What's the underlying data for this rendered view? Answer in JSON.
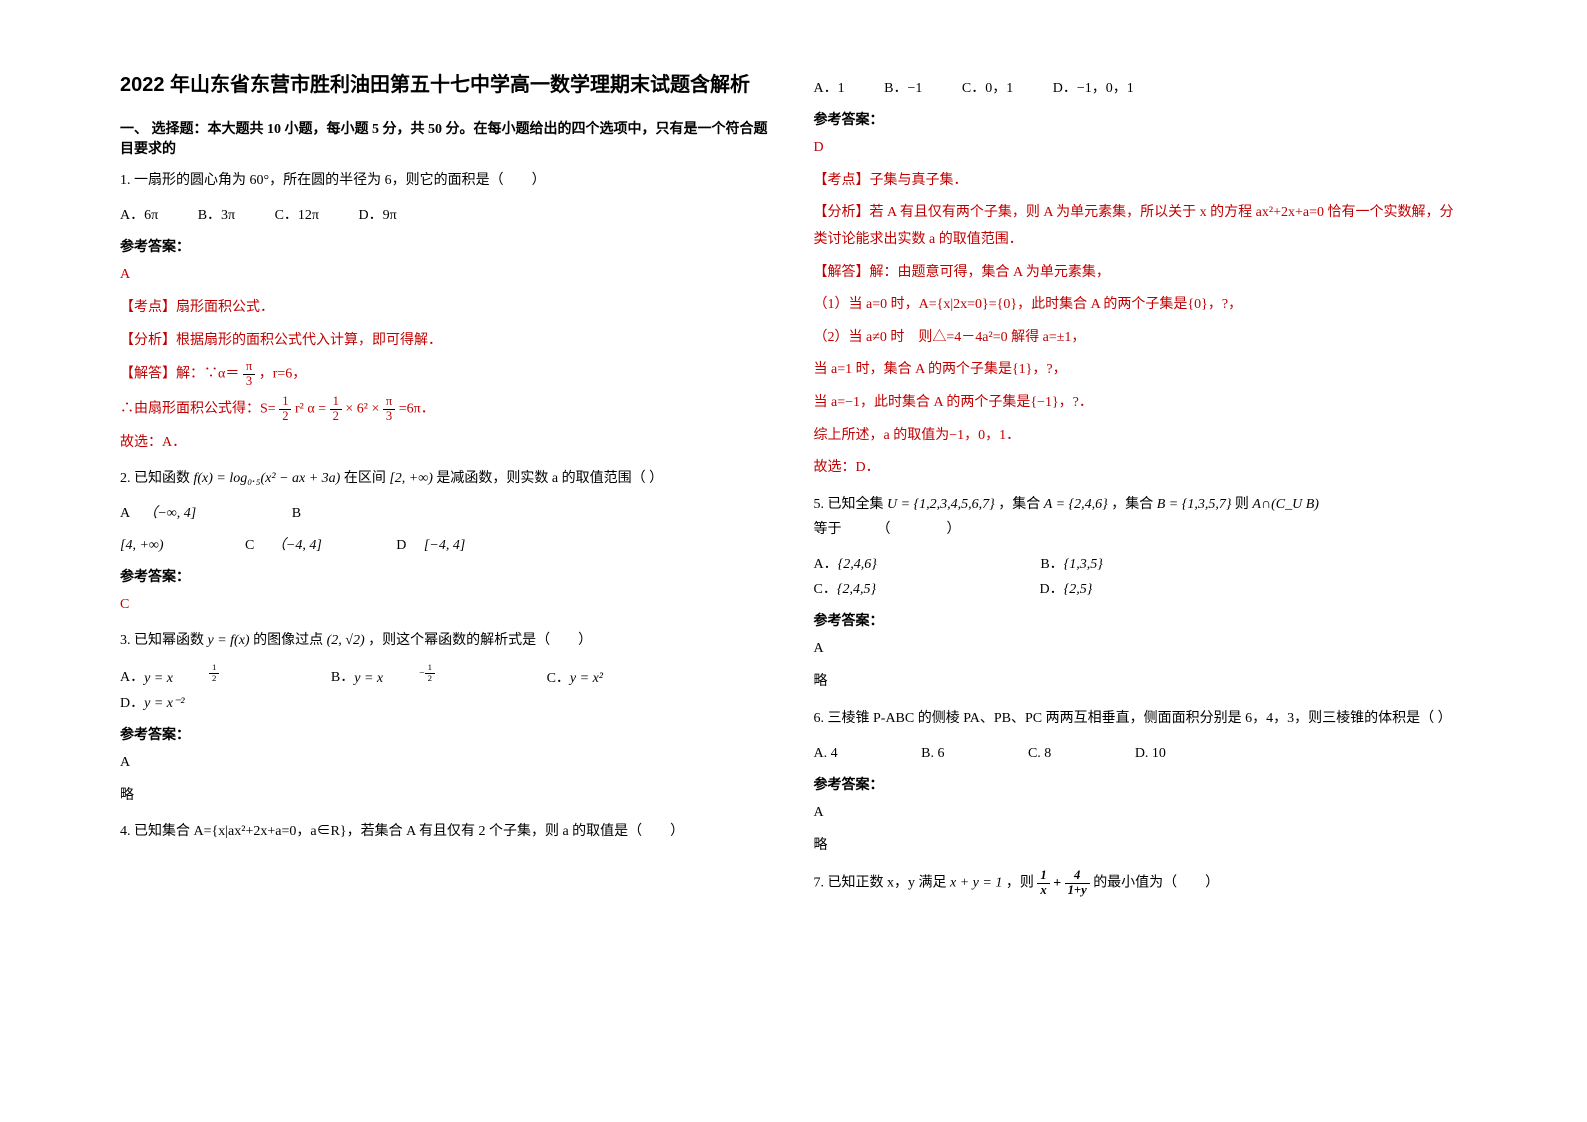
{
  "title": "2022 年山东省东营市胜利油田第五十七中学高一数学理期末试题含解析",
  "section1": "一、 选择题：本大题共 10 小题，每小题 5 分，共 50 分。在每小题给出的四个选项中，只有是一个符合题目要求的",
  "q1": {
    "text": "1. 一扇形的圆心角为 60°，所在圆的半径为 6，则它的面积是（　　）",
    "a": "A．6π",
    "b": "B．3π",
    "c": "C．12π",
    "d": "D．9π",
    "answer_label": "参考答案：",
    "answer": "A",
    "point_label": "【考点】扇形面积公式．",
    "analysis_label": "【分析】根据扇形的面积公式代入计算，即可得解．",
    "solve_label": "【解答】解：∵α＝",
    "solve_mid": "，r=6，",
    "solve2": "∴由扇形面积公式得：S=",
    "solve3": "=6π．",
    "pick": "故选：A．"
  },
  "q2": {
    "text_a": "2. 已知函数 ",
    "text_b": " 在区间 ",
    "text_c": " 是减函数，则实数 a 的取值范围（ ）",
    "fx": "f(x) = log₀.₅(x² − ax + 3a)",
    "interval": "[2, +∞)",
    "oa": "（−∞, 4]",
    "ob": "",
    "oc1": "[4, +∞)",
    "oc2": "（−4, 4]",
    "od": "[−4, 4]",
    "answer_label": "参考答案：",
    "answer": "C"
  },
  "q3": {
    "text_a": "3. 已知幂函数 ",
    "text_b": " 的图像过点 ",
    "text_c": "，则这个幂函数的解析式是（　　）",
    "yfx": "y = f(x)",
    "pt": "(2, √2)",
    "oa": "y = x",
    "ob": "y = x",
    "oc": "y = x²",
    "od": "y = x⁻²",
    "answer_label": "参考答案：",
    "answer": "A",
    "skip": "略"
  },
  "q4": {
    "text": "4. 已知集合 A={x|ax²+2x+a=0，a∈R}，若集合 A 有且仅有 2 个子集，则 a 的取值是（　　）",
    "oa": "A．1",
    "ob": "B．−1",
    "oc": "C．0，1",
    "od": "D．−1，0，1",
    "answer_label": "参考答案：",
    "answer": "D",
    "point": "【考点】子集与真子集．",
    "analysis": "【分析】若 A 有且仅有两个子集，则 A 为单元素集，所以关于 x 的方程 ax²+2x+a=0 恰有一个实数解，分类讨论能求出实数 a 的取值范围．",
    "solve1": "【解答】解：由题意可得，集合 A 为单元素集，",
    "solve2": "（1）当 a=0 时，A={x|2x=0}={0}，此时集合 A 的两个子集是{0}，?，",
    "solve3": "（2）当 a≠0 时　则△=4－4a²=0 解得 a=±1，",
    "solve4": "当 a=1 时，集合 A 的两个子集是{1}，?，",
    "solve5": "当 a=−1，此时集合 A 的两个子集是{−1}，?．",
    "solve6": "综上所述，a 的取值为−1，0，1．",
    "pick": "故选：D．"
  },
  "q5": {
    "text_a": "5. 已知全集 ",
    "u": "U = {1,2,3,4,5,6,7}",
    "text_b": "，集合 ",
    "setA": "A = {2,4,6}",
    "text_c": "，集合 ",
    "setB": "B = {1,3,5,7}",
    "text_d": " 则 ",
    "expr": "A∩(C_U B)",
    "text_e": " 等于　　　（　　　　）",
    "oa": "{2,4,6}",
    "ob": "{1,3,5}",
    "oc": "{2,4,5}",
    "od": "{2,5}",
    "answer_label": "参考答案：",
    "answer": "A",
    "skip": "略"
  },
  "q6": {
    "text": "6. 三棱锥 P-ABC 的侧棱 PA、PB、PC 两两互相垂直，侧面面积分别是 6，4，3，则三棱锥的体积是（ ）",
    "oa": "A. 4",
    "ob": "B. 6",
    "oc": "C. 8",
    "od": "D. 10",
    "answer_label": "参考答案：",
    "answer": "A",
    "skip": "略"
  },
  "q7": {
    "text_a": "7. 已知正数 x，y 满足 ",
    "eq": "x + y = 1",
    "text_b": "，则 ",
    "text_c": " 的最小值为（　　）"
  }
}
